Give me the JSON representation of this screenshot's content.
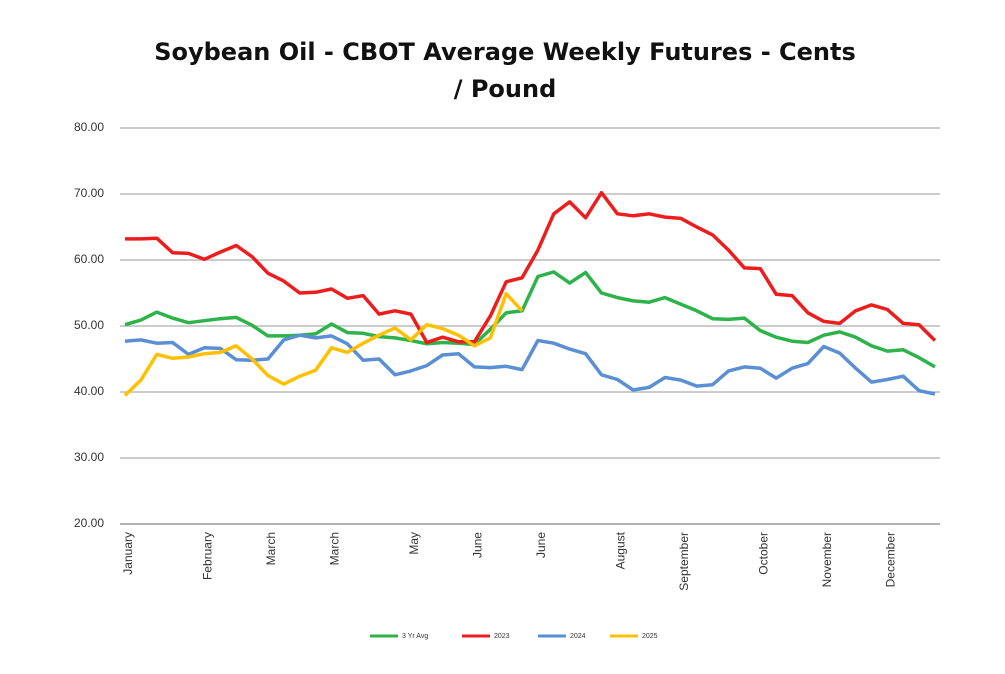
{
  "chart_data": {
    "type": "line",
    "title": "Soybean Oil - CBOT Average Weekly Futures - Cents / Pound",
    "categories": [
      "January",
      null,
      null,
      null,
      null,
      "February",
      null,
      null,
      null,
      "March",
      null,
      null,
      null,
      "March",
      null,
      null,
      null,
      null,
      "May",
      null,
      null,
      null,
      "June",
      null,
      null,
      null,
      "June",
      null,
      null,
      null,
      null,
      "August",
      null,
      null,
      null,
      "September",
      null,
      null,
      null,
      null,
      "October",
      null,
      null,
      null,
      "November",
      null,
      null,
      null,
      "December",
      null,
      null,
      null
    ],
    "series": [
      {
        "name": "3 Yr Avg",
        "color": "#2db34a",
        "values": [
          50.2,
          50.9,
          52.1,
          51.2,
          50.5,
          50.8,
          51.1,
          51.3,
          50.1,
          48.5,
          48.5,
          48.6,
          48.8,
          50.3,
          49.0,
          48.9,
          48.4,
          48.2,
          47.8,
          47.3,
          47.5,
          47.4,
          47.2,
          49.5,
          52.0,
          52.3,
          57.5,
          58.2,
          56.5,
          58.1,
          55.0,
          54.3,
          53.8,
          53.6,
          54.3,
          53.3,
          52.3,
          51.1,
          51.0,
          51.2,
          49.3,
          48.3,
          47.7,
          47.5,
          48.6,
          49.1,
          48.3,
          47.0,
          46.2,
          46.4,
          45.2,
          43.8
        ]
      },
      {
        "name": "2023",
        "color": "#ee1d1d",
        "values": [
          63.2,
          63.2,
          63.3,
          61.1,
          61.0,
          60.1,
          61.2,
          62.2,
          60.5,
          58.0,
          56.8,
          55.0,
          55.1,
          55.6,
          54.2,
          54.6,
          51.8,
          52.3,
          51.8,
          47.5,
          48.3,
          47.6,
          47.6,
          51.5,
          56.7,
          57.3,
          61.5,
          67.0,
          68.8,
          66.4,
          70.2,
          67.0,
          66.7,
          67.0,
          66.5,
          66.3,
          65.0,
          63.8,
          61.5,
          58.8,
          58.7,
          54.8,
          54.6,
          52.0,
          50.7,
          50.4,
          52.3,
          53.2,
          52.5,
          50.4,
          50.2,
          47.8
        ]
      },
      {
        "name": "2024",
        "color": "#5b8fd4",
        "values": [
          47.7,
          47.9,
          47.4,
          47.5,
          45.7,
          46.7,
          46.6,
          44.9,
          44.8,
          45.0,
          47.9,
          48.6,
          48.2,
          48.5,
          47.3,
          44.8,
          45.0,
          42.6,
          43.2,
          44.0,
          45.6,
          45.8,
          43.8,
          43.7,
          43.9,
          43.4,
          47.8,
          47.4,
          46.5,
          45.8,
          42.6,
          41.9,
          40.3,
          40.7,
          42.2,
          41.8,
          40.9,
          41.1,
          43.2,
          43.8,
          43.6,
          42.1,
          43.6,
          44.3,
          46.9,
          45.9,
          43.6,
          41.5,
          41.9,
          42.4,
          40.2,
          39.7
        ]
      },
      {
        "name": "2025",
        "color": "#ffc000",
        "values": [
          39.5,
          41.8,
          45.7,
          45.1,
          45.3,
          45.8,
          46.0,
          47.0,
          45.0,
          42.5,
          41.2,
          42.4,
          43.3,
          46.7,
          46.0,
          47.4,
          48.6,
          49.7,
          47.9,
          50.2,
          49.6,
          48.6,
          47.0,
          48.2,
          54.9,
          52.3,
          null,
          null,
          null,
          null,
          null,
          null,
          null,
          null,
          null,
          null,
          null,
          null,
          null,
          null,
          null,
          null,
          null,
          null,
          null,
          null,
          null,
          null,
          null,
          null,
          null,
          null
        ]
      }
    ],
    "ylim": [
      20,
      80
    ],
    "yticks": [
      {
        "value": 20,
        "label": "20.00"
      },
      {
        "value": 30,
        "label": "30.00"
      },
      {
        "value": 40,
        "label": "40.00"
      },
      {
        "value": 50,
        "label": "50.00"
      },
      {
        "value": 60,
        "label": "60.00"
      },
      {
        "value": 70,
        "label": "70.00"
      },
      {
        "value": 80,
        "label": "80.00"
      }
    ],
    "grid": true,
    "legend": "bottom"
  }
}
